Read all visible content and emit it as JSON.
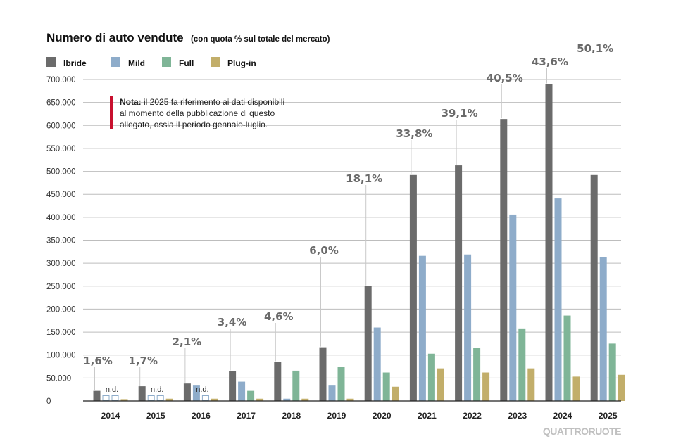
{
  "colors": {
    "ibride": "#6b6b6b",
    "mild": "#8eacca",
    "full": "#7fb597",
    "plugin": "#c2ae6a",
    "note_bar": "#c8102e",
    "highlight_year": "#c8102e",
    "grid": "#bdbdbd"
  },
  "chart_data": {
    "type": "bar",
    "title": "Numero di auto vendute",
    "subtitle": "(con quota % sul totale del mercato)",
    "xlabel": "",
    "ylabel": "",
    "ylim": [
      0,
      700000
    ],
    "yticks": [
      "0",
      "50.000",
      "100.000",
      "150.000",
      "200.000",
      "250.000",
      "300.000",
      "350.000",
      "400.000",
      "450.000",
      "500.000",
      "550.000",
      "600.000",
      "650.000",
      "700.000"
    ],
    "categories": [
      "2014",
      "2015",
      "2016",
      "2017",
      "2018",
      "2019",
      "2020",
      "2021",
      "2022",
      "2023",
      "2024",
      "2025"
    ],
    "highlight_category": "2025",
    "series": [
      {
        "name": "Ibride",
        "key": "ibride",
        "values": [
          22000,
          32000,
          38000,
          65000,
          85000,
          117000,
          250000,
          492000,
          513000,
          614000,
          690000,
          492000
        ]
      },
      {
        "name": "Mild",
        "key": "mild",
        "values": [
          null,
          null,
          35000,
          42000,
          5000,
          35000,
          160000,
          316000,
          319000,
          406000,
          441000,
          313000
        ]
      },
      {
        "name": "Full",
        "key": "full",
        "values": [
          null,
          null,
          null,
          22000,
          66000,
          75000,
          62000,
          103000,
          116000,
          158000,
          186000,
          125000
        ]
      },
      {
        "name": "Plug-in",
        "key": "plugin",
        "values": [
          4000,
          5000,
          5000,
          5000,
          5000,
          5000,
          31000,
          71000,
          62000,
          71000,
          53000,
          57000
        ]
      }
    ],
    "not_available_label": "n.d.",
    "not_available": [
      {
        "category": "2014",
        "series": [
          "mild",
          "full"
        ]
      },
      {
        "category": "2015",
        "series": [
          "mild",
          "full"
        ]
      },
      {
        "category": "2016",
        "series": [
          "full"
        ]
      }
    ],
    "annotations": [
      "1,6%",
      "1,7%",
      "2,1%",
      "3,4%",
      "4,6%",
      "6,0%",
      "18,1%",
      "33,8%",
      "39,1%",
      "40,5%",
      "43,6%",
      "50,1%"
    ]
  },
  "note": {
    "label": "Nota:",
    "lines": [
      "il 2025 fa riferimento ai dati disponibili",
      "al momento della pubblicazione di questo",
      "allegato, ossia il periodo gennaio-luglio."
    ]
  },
  "brand": "QUATTRORUOTE"
}
